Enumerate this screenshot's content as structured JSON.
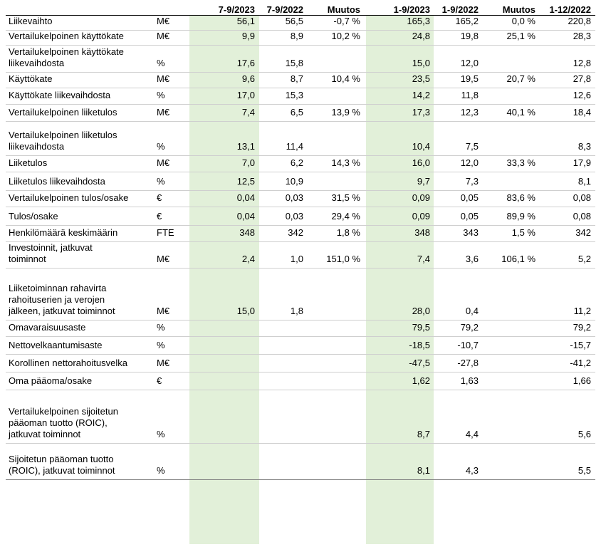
{
  "columns": [
    "",
    "",
    "7-9/2023",
    "7-9/2022",
    "Muutos",
    "1-9/2023",
    "1-9/2022",
    "Muutos",
    "1-12/2022"
  ],
  "rows": [
    {
      "label": "Liikevaihto",
      "unit": "M€",
      "values": [
        "56,1",
        "56,5",
        "-0,7 %",
        "165,3",
        "165,2",
        "0,0 %",
        "220,8"
      ]
    },
    {
      "label": "Vertailukelpoinen käyttökate",
      "unit": "M€",
      "values": [
        "9,9",
        "8,9",
        "10,2 %",
        "24,8",
        "19,8",
        "25,1 %",
        "28,3"
      ]
    },
    {
      "label": "Vertailukelpoinen käyttökate\nliikevaihdosta",
      "unit": "%",
      "values": [
        "17,6",
        "15,8",
        "",
        "15,0",
        "12,0",
        "",
        "12,8"
      ]
    },
    {
      "label": "Käyttökate",
      "unit": "M€",
      "values": [
        "9,6",
        "8,7",
        "10,4 %",
        "23,5",
        "19,5",
        "20,7 %",
        "27,8"
      ]
    },
    {
      "label": "Käyttökate liikevaihdosta",
      "unit": "%",
      "values": [
        "17,0",
        "15,3",
        "",
        "14,2",
        "11,8",
        "",
        "12,6"
      ]
    },
    {
      "label": "Vertailukelpoinen liiketulos",
      "unit": "M€",
      "values": [
        "7,4",
        "6,5",
        "13,9 %",
        "17,3",
        "12,3",
        "40,1 %",
        "18,4"
      ]
    },
    {
      "label": "Vertailukelpoinen liiketulos\nliikevaihdosta",
      "unit": "%",
      "values": [
        "13,1",
        "11,4",
        "",
        "10,4",
        "7,5",
        "",
        "8,3"
      ]
    },
    {
      "label": "Liiketulos",
      "unit": "M€",
      "values": [
        "7,0",
        "6,2",
        "14,3 %",
        "16,0",
        "12,0",
        "33,3 %",
        "17,9"
      ]
    },
    {
      "label": "Liiketulos liikevaihdosta",
      "unit": "%",
      "values": [
        "12,5",
        "10,9",
        "",
        "9,7",
        "7,3",
        "",
        "8,1"
      ]
    },
    {
      "label": "Vertailukelpoinen tulos/osake",
      "unit": "€",
      "values": [
        "0,04",
        "0,03",
        "31,5 %",
        "0,09",
        "0,05",
        "83,6 %",
        "0,08"
      ]
    },
    {
      "label": "Tulos/osake",
      "unit": "€",
      "values": [
        "0,04",
        "0,03",
        "29,4 %",
        "0,09",
        "0,05",
        "89,9 %",
        "0,08"
      ]
    },
    {
      "label": "Henkilömäärä keskimäärin",
      "unit": "FTE",
      "values": [
        "348",
        "342",
        "1,8 %",
        "348",
        "343",
        "1,5 %",
        "342"
      ]
    },
    {
      "label": "Investoinnit, jatkuvat\ntoiminnot",
      "unit": "M€",
      "values": [
        "2,4",
        "1,0",
        "151,0 %",
        "7,4",
        "3,6",
        "106,1 %",
        "5,2"
      ]
    },
    {
      "label": "Liiketoiminnan rahavirta\nrahoituserien ja verojen\njälkeen, jatkuvat toiminnot",
      "unit": "M€",
      "values": [
        "15,0",
        "1,8",
        "",
        "28,0",
        "0,4",
        "",
        "11,2"
      ]
    },
    {
      "label": "Omavaraisuusaste",
      "unit": "%",
      "values": [
        "",
        "",
        "",
        "79,5",
        "79,2",
        "",
        "79,2"
      ]
    },
    {
      "label": "Nettovelkaantumisaste",
      "unit": "%",
      "values": [
        "",
        "",
        "",
        "-18,5",
        "-10,7",
        "",
        "-15,7"
      ]
    },
    {
      "label": "Korollinen nettorahoitusvelka",
      "unit": "M€",
      "values": [
        "",
        "",
        "",
        "-47,5",
        "-27,8",
        "",
        "-41,2"
      ]
    },
    {
      "label": "Oma pääoma/osake",
      "unit": "€",
      "values": [
        "",
        "",
        "",
        "1,62",
        "1,63",
        "",
        "1,66"
      ]
    },
    {
      "label": "Vertailukelpoinen sijoitetun\npääoman tuotto (ROIC),\njatkuvat toiminnot",
      "unit": "%",
      "values": [
        "",
        "",
        "",
        "8,7",
        "4,4",
        "",
        "5,6"
      ]
    },
    {
      "label": "Sijoitetun pääoman tuotto\n(ROIC), jatkuvat toiminnot",
      "unit": "%",
      "values": [
        "",
        "",
        "",
        "8,1",
        "4,3",
        "",
        "5,5"
      ]
    }
  ],
  "colors": {
    "highlight_column": "#e2f0d9"
  }
}
